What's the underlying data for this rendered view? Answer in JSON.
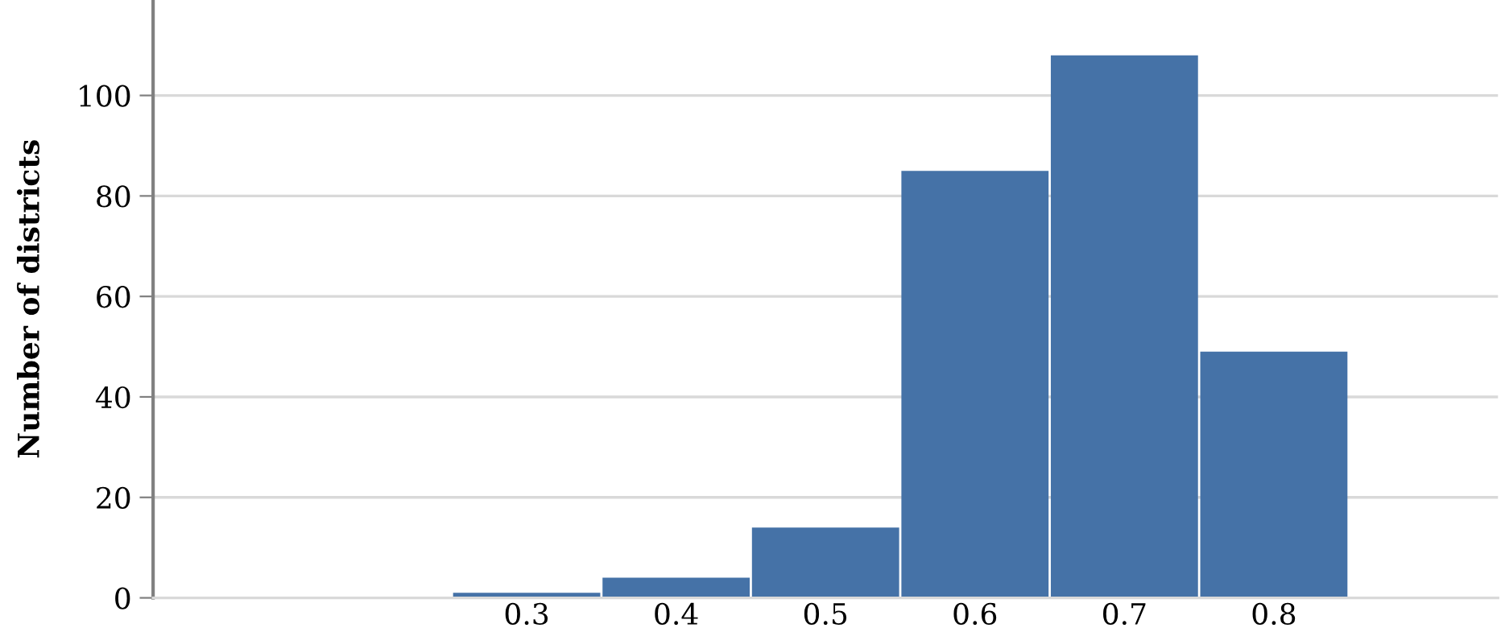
{
  "chart_data": {
    "type": "bar",
    "ylabel": "Number of districts",
    "categories": [
      null,
      null,
      "0.3",
      "0.4",
      "0.5",
      "0.6",
      "0.7",
      "0.8",
      null
    ],
    "values": [
      0,
      0,
      1,
      4,
      14,
      85,
      108,
      49,
      0
    ],
    "color": "#4572a7",
    "ylim": [
      0,
      119
    ],
    "yticks": [
      0,
      20,
      40,
      60,
      80,
      100
    ],
    "grid": "y"
  }
}
